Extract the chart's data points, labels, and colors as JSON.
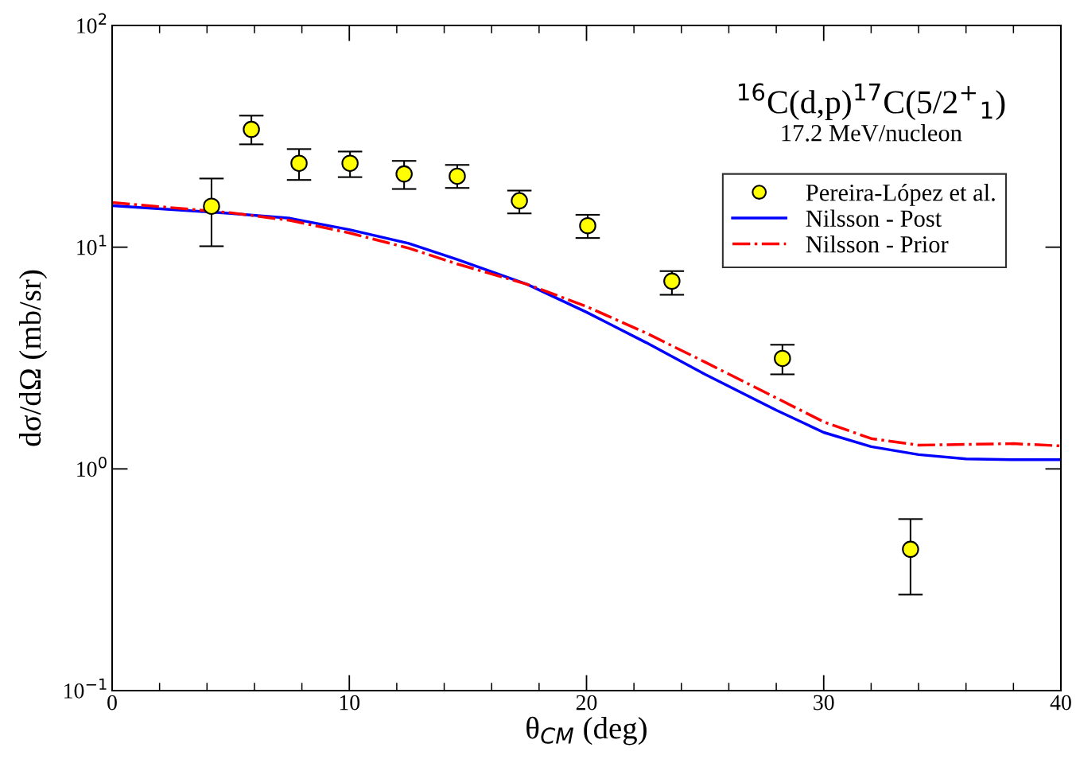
{
  "chart_data": {
    "type": "scatter",
    "xlabel": "θ$_{CM}$ (deg)",
    "ylabel": "dσ/dΩ (mb/sr)",
    "annotations": [
      "$^{16}$C(d,p)$^{17}$C(5/2$^{+}$$_{1}$)",
      "17.2 MeV/nucleon"
    ],
    "xlim": [
      0,
      40
    ],
    "xticks": [
      0,
      10,
      20,
      30,
      40
    ],
    "ylim": [
      0.1,
      100
    ],
    "log": "y",
    "yticks": [
      {
        "value": 0.1,
        "label": "10$^{−1}$"
      },
      {
        "value": 1,
        "label": "10$^{0}$"
      },
      {
        "value": 10,
        "label": "10$^{1}$"
      },
      {
        "value": 100,
        "label": "10$^{2}$"
      }
    ],
    "grid": false,
    "legend": "top right",
    "series": [
      {
        "name": "Pereira-López et al.",
        "type": "scatter",
        "color": "#ffff00",
        "marker": "circle",
        "x": [
          4.19,
          5.87,
          7.88,
          10.03,
          12.31,
          14.55,
          17.17,
          20.05,
          23.6,
          28.26,
          33.66
        ],
        "values": [
          15.3,
          34.0,
          23.9,
          23.9,
          21.4,
          20.9,
          16.2,
          12.5,
          7.03,
          3.15,
          0.434
        ],
        "errors": [
          [
            10.1,
            20.4
          ],
          [
            29.1,
            39.2
          ],
          [
            20.1,
            27.7
          ],
          [
            20.7,
            27.0
          ],
          [
            18.3,
            24.5
          ],
          [
            18.5,
            23.5
          ],
          [
            14.2,
            18.0
          ],
          [
            11.0,
            14.0
          ],
          [
            6.1,
            7.8
          ],
          [
            2.67,
            3.63
          ],
          [
            0.271,
            0.594
          ]
        ]
      },
      {
        "name": "Nilsson - Post",
        "type": "line",
        "color": "#0000ff",
        "line_style": "solid",
        "x": [
          0,
          5,
          7.5,
          10,
          12.5,
          14.55,
          17.5,
          20,
          22.5,
          25,
          28,
          30,
          32,
          34,
          36,
          38,
          40
        ],
        "values": [
          15.4,
          14.2,
          13.5,
          12.0,
          10.4,
          8.8,
          6.8,
          5.09,
          3.72,
          2.67,
          1.84,
          1.46,
          1.26,
          1.16,
          1.11,
          1.1,
          1.1
        ]
      },
      {
        "name": "Nilsson - Prior",
        "type": "line",
        "color": "#ff0000",
        "line_style": "dashdot",
        "x": [
          0,
          5,
          7.5,
          10,
          12.5,
          14.55,
          17.5,
          20,
          22.5,
          25,
          28,
          30,
          32,
          34,
          36,
          38,
          40
        ],
        "values": [
          15.9,
          14.3,
          13.2,
          11.6,
          9.9,
          8.4,
          6.8,
          5.4,
          4.11,
          3.03,
          2.09,
          1.63,
          1.37,
          1.28,
          1.29,
          1.3,
          1.27
        ]
      }
    ]
  }
}
